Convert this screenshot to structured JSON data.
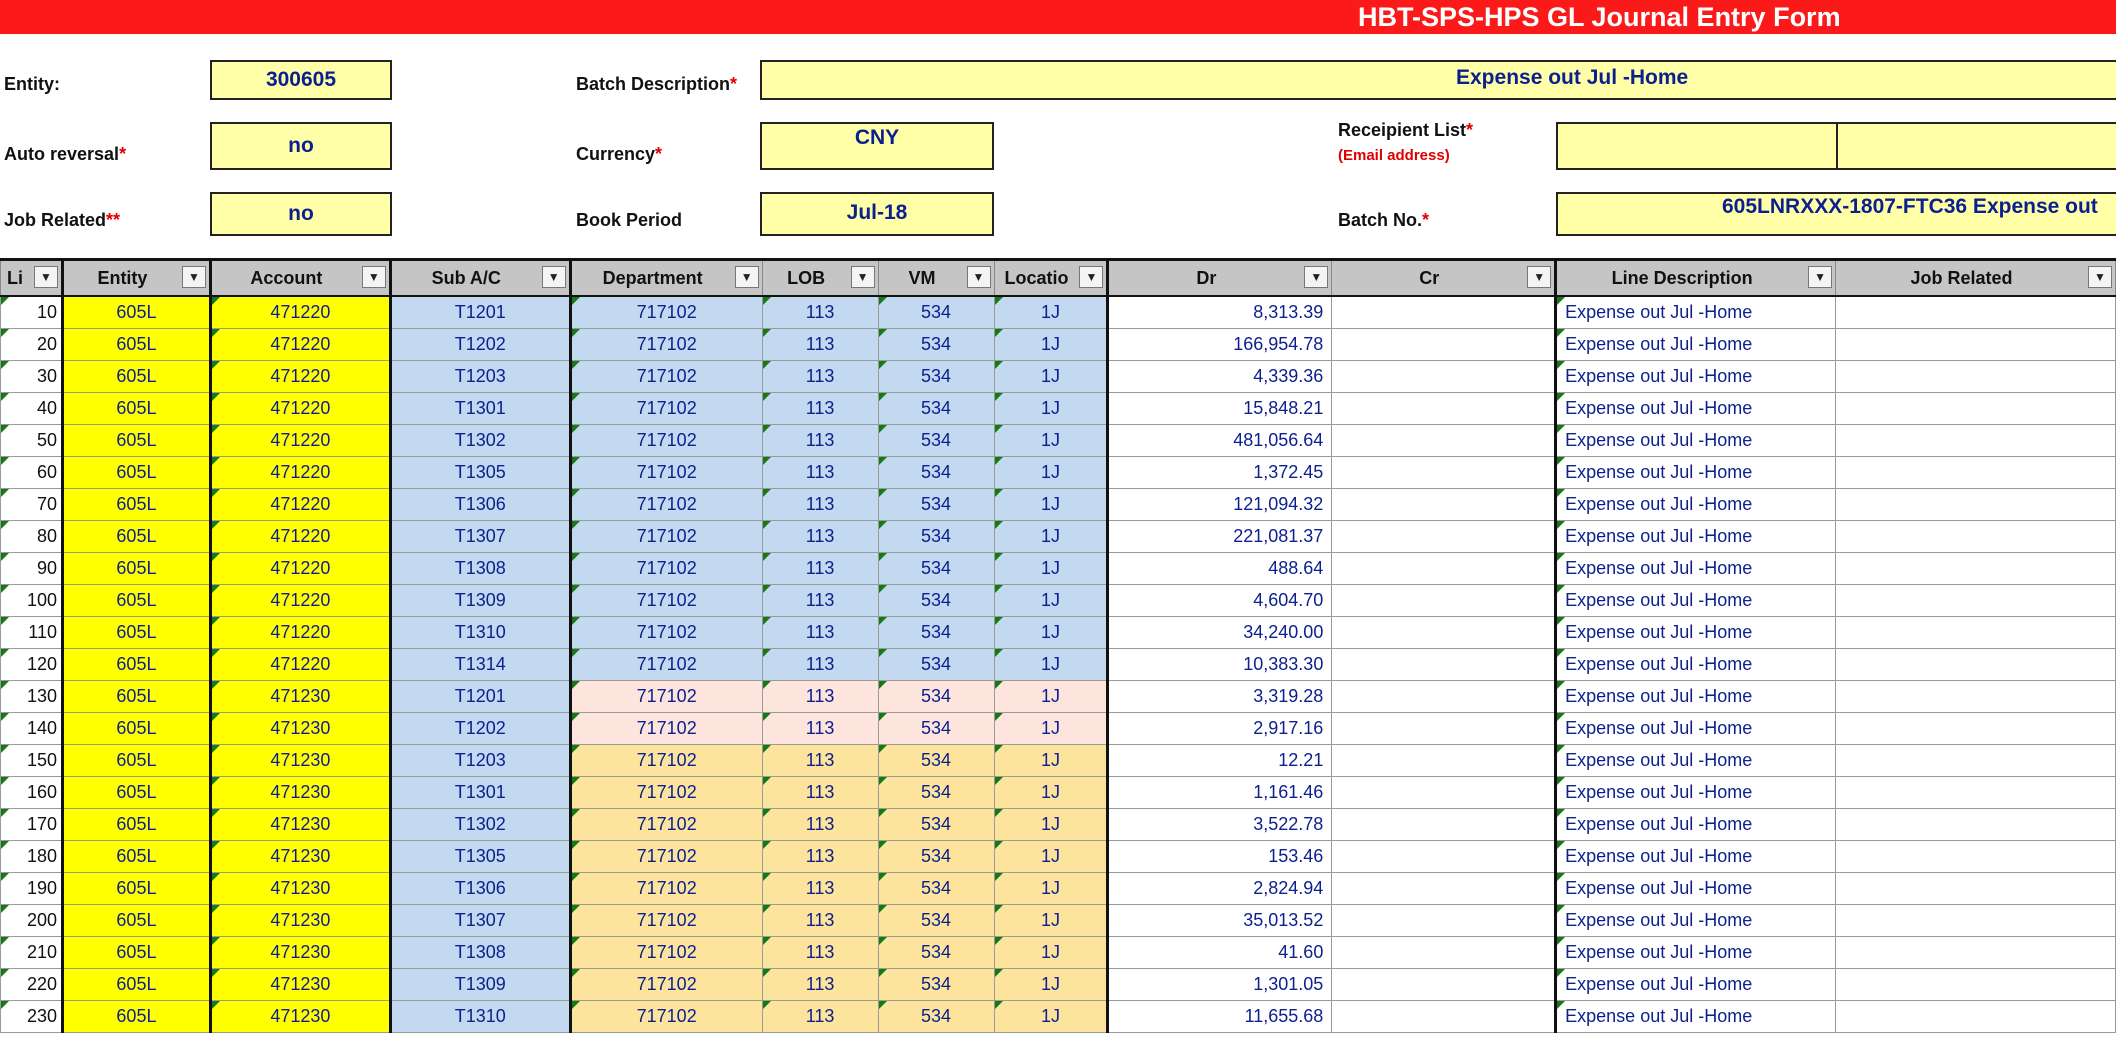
{
  "title": "HBT-SPS-HPS GL Journal Entry  Form",
  "header": {
    "entity_label": "Entity:",
    "entity_value": "300605",
    "auto_reversal_label": "Auto reversal",
    "auto_reversal_value": "no",
    "job_related_label": "Job Related",
    "job_related_req": "**",
    "job_related_value": "no",
    "batch_desc_label": "Batch Description",
    "batch_desc_value": "Expense out  Jul -Home",
    "currency_label": "Currency",
    "currency_value": "CNY",
    "book_period_label": "Book Period",
    "book_period_value": "Jul-18",
    "recipient_label": "Receipient List",
    "recipient_sub": "(Email address)",
    "recipient_value_1": "",
    "recipient_value_2": "",
    "batch_no_label": "Batch No.",
    "batch_no_value": "605LNRXXX-1807-FTC36 Expense out",
    "required_mark": "*"
  },
  "columns": [
    "Li",
    "Entity",
    "Account",
    "Sub A/C",
    "Department",
    "LOB",
    "VM",
    "Locatio",
    "Dr",
    "Cr",
    "Line Description",
    "Job Related"
  ],
  "filter_icon": "dropdown-arrow-icon",
  "colors": {
    "title_bar": "#fc1919",
    "input_fill": "#ffffa8",
    "entity_account_fill": "#ffff00",
    "dim_blue_fill": "#c2d9ef",
    "dim_pink_fill": "#fde4dc",
    "dim_orange_fill": "#fde49c",
    "value_text": "#0b1f8f"
  },
  "rows": [
    {
      "line": "10",
      "entity": "605L",
      "account": "471220",
      "sub": "T1201",
      "dept": "717102",
      "lob": "113",
      "vm": "534",
      "loc": "1J",
      "dr": "8,313.39",
      "cr": "",
      "desc": "Expense out  Jul -Home",
      "job": "",
      "fill": "blue"
    },
    {
      "line": "20",
      "entity": "605L",
      "account": "471220",
      "sub": "T1202",
      "dept": "717102",
      "lob": "113",
      "vm": "534",
      "loc": "1J",
      "dr": "166,954.78",
      "cr": "",
      "desc": "Expense out  Jul -Home",
      "job": "",
      "fill": "blue"
    },
    {
      "line": "30",
      "entity": "605L",
      "account": "471220",
      "sub": "T1203",
      "dept": "717102",
      "lob": "113",
      "vm": "534",
      "loc": "1J",
      "dr": "4,339.36",
      "cr": "",
      "desc": "Expense out  Jul -Home",
      "job": "",
      "fill": "blue"
    },
    {
      "line": "40",
      "entity": "605L",
      "account": "471220",
      "sub": "T1301",
      "dept": "717102",
      "lob": "113",
      "vm": "534",
      "loc": "1J",
      "dr": "15,848.21",
      "cr": "",
      "desc": "Expense out  Jul -Home",
      "job": "",
      "fill": "blue"
    },
    {
      "line": "50",
      "entity": "605L",
      "account": "471220",
      "sub": "T1302",
      "dept": "717102",
      "lob": "113",
      "vm": "534",
      "loc": "1J",
      "dr": "481,056.64",
      "cr": "",
      "desc": "Expense out  Jul -Home",
      "job": "",
      "fill": "blue"
    },
    {
      "line": "60",
      "entity": "605L",
      "account": "471220",
      "sub": "T1305",
      "dept": "717102",
      "lob": "113",
      "vm": "534",
      "loc": "1J",
      "dr": "1,372.45",
      "cr": "",
      "desc": "Expense out  Jul -Home",
      "job": "",
      "fill": "blue"
    },
    {
      "line": "70",
      "entity": "605L",
      "account": "471220",
      "sub": "T1306",
      "dept": "717102",
      "lob": "113",
      "vm": "534",
      "loc": "1J",
      "dr": "121,094.32",
      "cr": "",
      "desc": "Expense out  Jul -Home",
      "job": "",
      "fill": "blue"
    },
    {
      "line": "80",
      "entity": "605L",
      "account": "471220",
      "sub": "T1307",
      "dept": "717102",
      "lob": "113",
      "vm": "534",
      "loc": "1J",
      "dr": "221,081.37",
      "cr": "",
      "desc": "Expense out  Jul -Home",
      "job": "",
      "fill": "blue"
    },
    {
      "line": "90",
      "entity": "605L",
      "account": "471220",
      "sub": "T1308",
      "dept": "717102",
      "lob": "113",
      "vm": "534",
      "loc": "1J",
      "dr": "488.64",
      "cr": "",
      "desc": "Expense out  Jul -Home",
      "job": "",
      "fill": "blue"
    },
    {
      "line": "100",
      "entity": "605L",
      "account": "471220",
      "sub": "T1309",
      "dept": "717102",
      "lob": "113",
      "vm": "534",
      "loc": "1J",
      "dr": "4,604.70",
      "cr": "",
      "desc": "Expense out  Jul -Home",
      "job": "",
      "fill": "blue"
    },
    {
      "line": "110",
      "entity": "605L",
      "account": "471220",
      "sub": "T1310",
      "dept": "717102",
      "lob": "113",
      "vm": "534",
      "loc": "1J",
      "dr": "34,240.00",
      "cr": "",
      "desc": "Expense out  Jul -Home",
      "job": "",
      "fill": "blue"
    },
    {
      "line": "120",
      "entity": "605L",
      "account": "471220",
      "sub": "T1314",
      "dept": "717102",
      "lob": "113",
      "vm": "534",
      "loc": "1J",
      "dr": "10,383.30",
      "cr": "",
      "desc": "Expense out  Jul -Home",
      "job": "",
      "fill": "blue"
    },
    {
      "line": "130",
      "entity": "605L",
      "account": "471230",
      "sub": "T1201",
      "dept": "717102",
      "lob": "113",
      "vm": "534",
      "loc": "1J",
      "dr": "3,319.28",
      "cr": "",
      "desc": "Expense out  Jul -Home",
      "job": "",
      "fill": "pink"
    },
    {
      "line": "140",
      "entity": "605L",
      "account": "471230",
      "sub": "T1202",
      "dept": "717102",
      "lob": "113",
      "vm": "534",
      "loc": "1J",
      "dr": "2,917.16",
      "cr": "",
      "desc": "Expense out  Jul -Home",
      "job": "",
      "fill": "pink"
    },
    {
      "line": "150",
      "entity": "605L",
      "account": "471230",
      "sub": "T1203",
      "dept": "717102",
      "lob": "113",
      "vm": "534",
      "loc": "1J",
      "dr": "12.21",
      "cr": "",
      "desc": "Expense out  Jul -Home",
      "job": "",
      "fill": "orange"
    },
    {
      "line": "160",
      "entity": "605L",
      "account": "471230",
      "sub": "T1301",
      "dept": "717102",
      "lob": "113",
      "vm": "534",
      "loc": "1J",
      "dr": "1,161.46",
      "cr": "",
      "desc": "Expense out  Jul -Home",
      "job": "",
      "fill": "orange"
    },
    {
      "line": "170",
      "entity": "605L",
      "account": "471230",
      "sub": "T1302",
      "dept": "717102",
      "lob": "113",
      "vm": "534",
      "loc": "1J",
      "dr": "3,522.78",
      "cr": "",
      "desc": "Expense out  Jul -Home",
      "job": "",
      "fill": "orange"
    },
    {
      "line": "180",
      "entity": "605L",
      "account": "471230",
      "sub": "T1305",
      "dept": "717102",
      "lob": "113",
      "vm": "534",
      "loc": "1J",
      "dr": "153.46",
      "cr": "",
      "desc": "Expense out  Jul -Home",
      "job": "",
      "fill": "orange"
    },
    {
      "line": "190",
      "entity": "605L",
      "account": "471230",
      "sub": "T1306",
      "dept": "717102",
      "lob": "113",
      "vm": "534",
      "loc": "1J",
      "dr": "2,824.94",
      "cr": "",
      "desc": "Expense out  Jul -Home",
      "job": "",
      "fill": "orange"
    },
    {
      "line": "200",
      "entity": "605L",
      "account": "471230",
      "sub": "T1307",
      "dept": "717102",
      "lob": "113",
      "vm": "534",
      "loc": "1J",
      "dr": "35,013.52",
      "cr": "",
      "desc": "Expense out  Jul -Home",
      "job": "",
      "fill": "orange"
    },
    {
      "line": "210",
      "entity": "605L",
      "account": "471230",
      "sub": "T1308",
      "dept": "717102",
      "lob": "113",
      "vm": "534",
      "loc": "1J",
      "dr": "41.60",
      "cr": "",
      "desc": "Expense out  Jul -Home",
      "job": "",
      "fill": "orange"
    },
    {
      "line": "220",
      "entity": "605L",
      "account": "471230",
      "sub": "T1309",
      "dept": "717102",
      "lob": "113",
      "vm": "534",
      "loc": "1J",
      "dr": "1,301.05",
      "cr": "",
      "desc": "Expense out  Jul -Home",
      "job": "",
      "fill": "orange"
    },
    {
      "line": "230",
      "entity": "605L",
      "account": "471230",
      "sub": "T1310",
      "dept": "717102",
      "lob": "113",
      "vm": "534",
      "loc": "1J",
      "dr": "11,655.68",
      "cr": "",
      "desc": "Expense out  Jul -Home",
      "job": "",
      "fill": "orange"
    }
  ]
}
